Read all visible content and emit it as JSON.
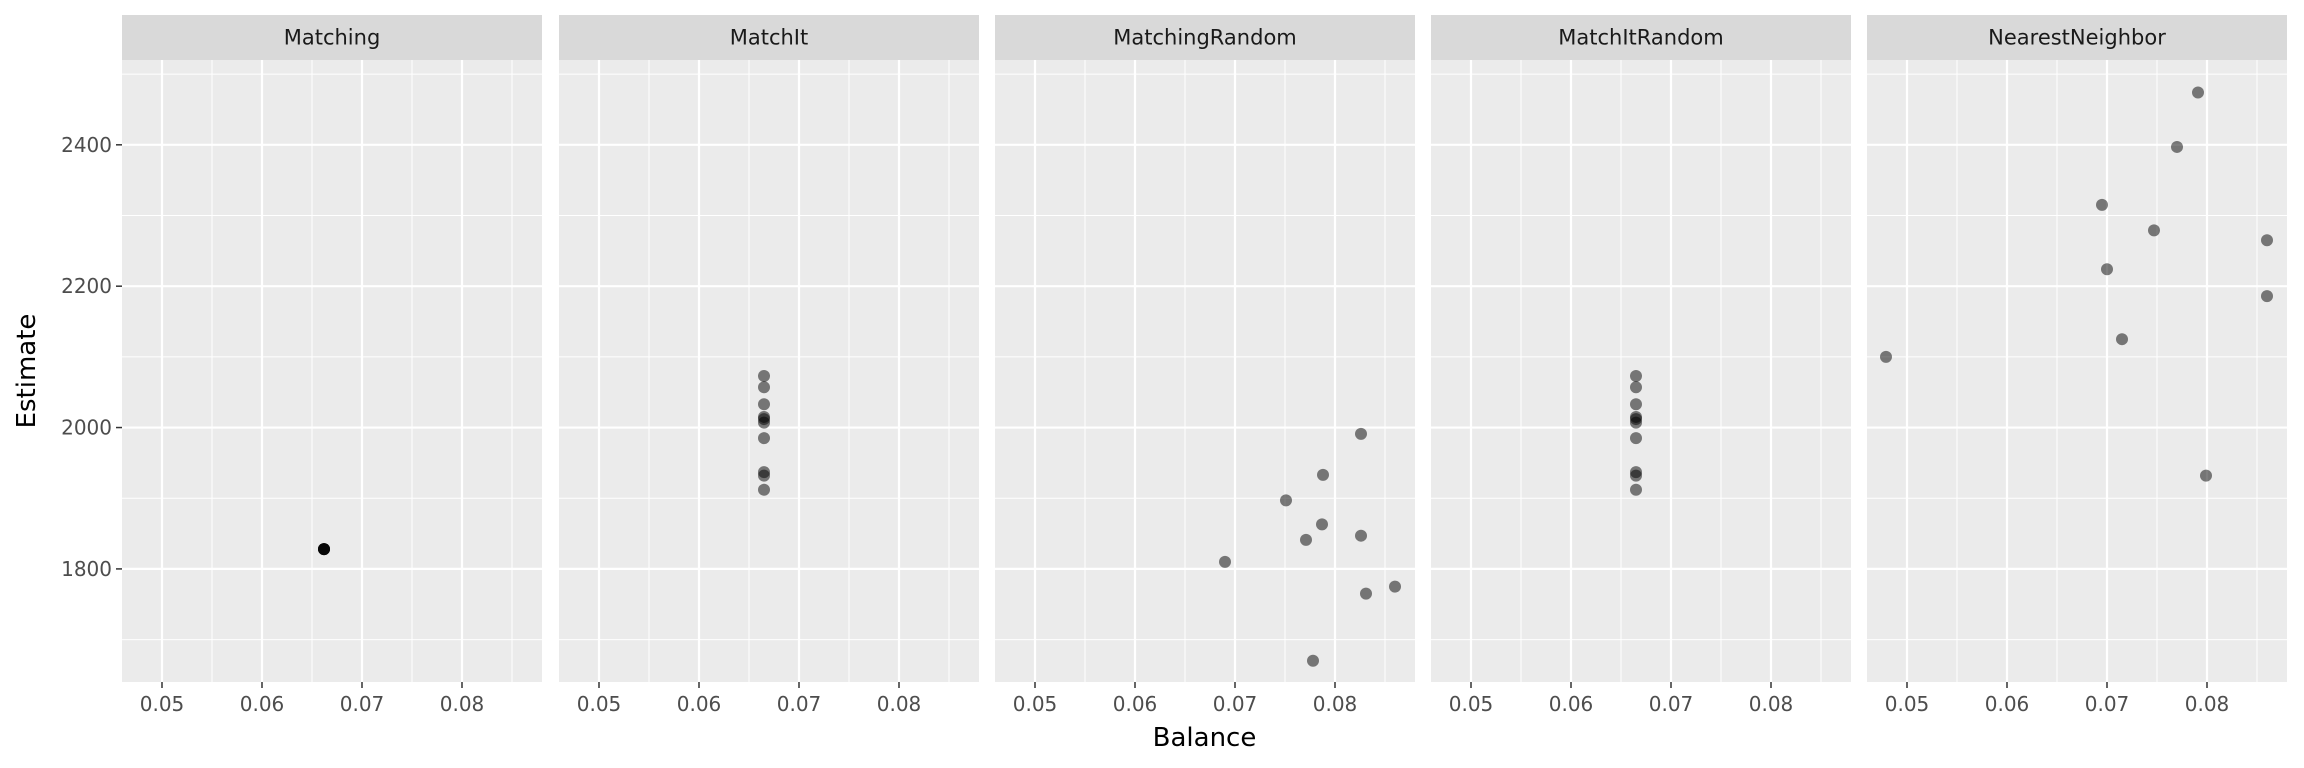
{
  "chart_data": {
    "type": "scatter",
    "xlabel": "Balance",
    "ylabel": "Estimate",
    "xlim": [
      0.046,
      0.088
    ],
    "ylim": [
      1640,
      2520
    ],
    "x_ticks": [
      0.05,
      0.06,
      0.07,
      0.08
    ],
    "x_tick_labels": [
      "0.05",
      "0.06",
      "0.07",
      "0.08"
    ],
    "y_ticks": [
      1800,
      2000,
      2200,
      2400
    ],
    "y_tick_labels": [
      "1800",
      "2000",
      "2200",
      "2400"
    ],
    "grid": true,
    "facets": [
      {
        "label": "Matching",
        "points": [
          {
            "x": 0.0662,
            "y": 1828
          },
          {
            "x": 0.0662,
            "y": 1828
          },
          {
            "x": 0.0662,
            "y": 1828
          },
          {
            "x": 0.0662,
            "y": 1828
          },
          {
            "x": 0.0662,
            "y": 1828
          }
        ]
      },
      {
        "label": "MatchIt",
        "points": [
          {
            "x": 0.0665,
            "y": 2073
          },
          {
            "x": 0.0665,
            "y": 2057
          },
          {
            "x": 0.0665,
            "y": 2033
          },
          {
            "x": 0.0665,
            "y": 2015
          },
          {
            "x": 0.0665,
            "y": 2012
          },
          {
            "x": 0.0665,
            "y": 2007
          },
          {
            "x": 0.0665,
            "y": 1985
          },
          {
            "x": 0.0665,
            "y": 1937
          },
          {
            "x": 0.0665,
            "y": 1932
          },
          {
            "x": 0.0665,
            "y": 1912
          }
        ]
      },
      {
        "label": "MatchingRandom",
        "points": [
          {
            "x": 0.0826,
            "y": 1991
          },
          {
            "x": 0.0788,
            "y": 1933
          },
          {
            "x": 0.0751,
            "y": 1897
          },
          {
            "x": 0.0787,
            "y": 1863
          },
          {
            "x": 0.0826,
            "y": 1847
          },
          {
            "x": 0.0771,
            "y": 1841
          },
          {
            "x": 0.069,
            "y": 1810
          },
          {
            "x": 0.086,
            "y": 1775
          },
          {
            "x": 0.0831,
            "y": 1765
          },
          {
            "x": 0.0778,
            "y": 1670
          }
        ]
      },
      {
        "label": "MatchItRandom",
        "points": [
          {
            "x": 0.0665,
            "y": 2073
          },
          {
            "x": 0.0665,
            "y": 2057
          },
          {
            "x": 0.0665,
            "y": 2033
          },
          {
            "x": 0.0665,
            "y": 2015
          },
          {
            "x": 0.0665,
            "y": 2012
          },
          {
            "x": 0.0665,
            "y": 2007
          },
          {
            "x": 0.0665,
            "y": 1985
          },
          {
            "x": 0.0665,
            "y": 1937
          },
          {
            "x": 0.0665,
            "y": 1932
          },
          {
            "x": 0.0665,
            "y": 1912
          }
        ]
      },
      {
        "label": "NearestNeighbor",
        "points": [
          {
            "x": 0.0791,
            "y": 2474
          },
          {
            "x": 0.077,
            "y": 2397
          },
          {
            "x": 0.0695,
            "y": 2315
          },
          {
            "x": 0.0747,
            "y": 2279
          },
          {
            "x": 0.086,
            "y": 2265
          },
          {
            "x": 0.07,
            "y": 2224
          },
          {
            "x": 0.086,
            "y": 2186
          },
          {
            "x": 0.0715,
            "y": 2125
          },
          {
            "x": 0.0479,
            "y": 2100
          },
          {
            "x": 0.0799,
            "y": 1932
          }
        ]
      }
    ],
    "colors": {
      "panel_background": "#ebebeb",
      "strip_background": "#d9d9d9",
      "grid_major": "#ffffff",
      "point": "#000000"
    }
  }
}
